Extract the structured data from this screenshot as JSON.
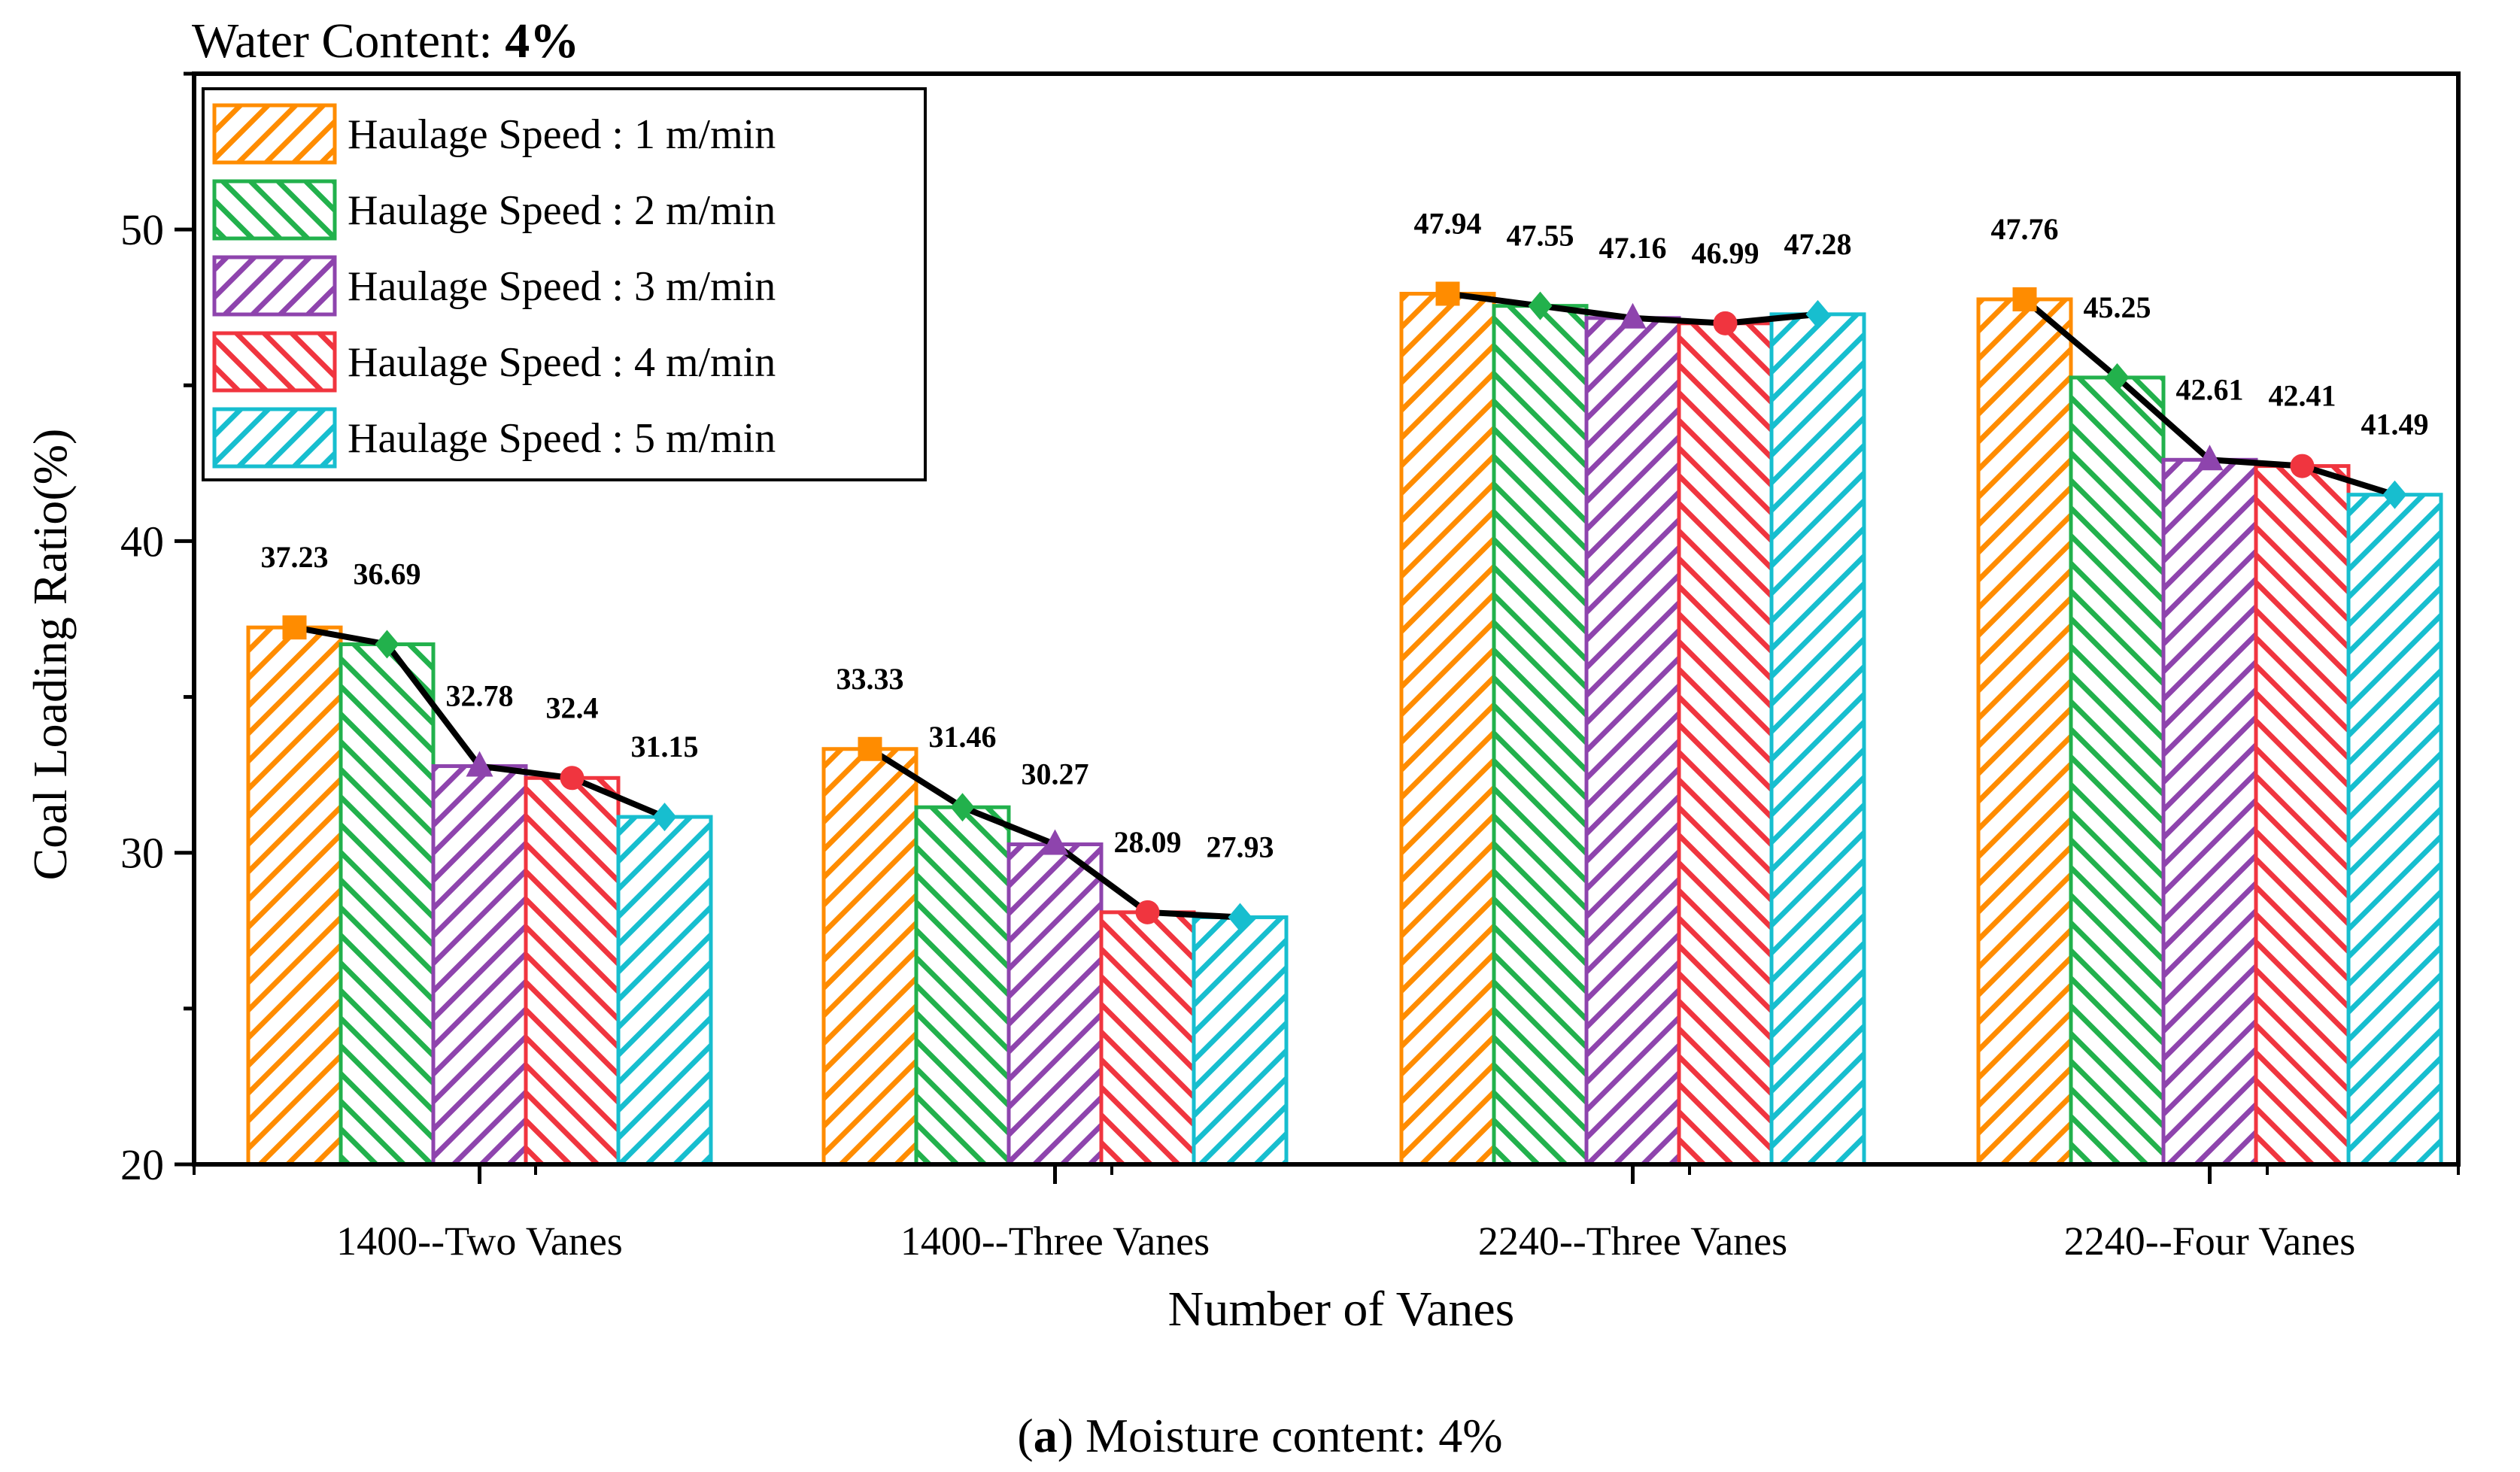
{
  "header": {
    "prefix": "Water Content: ",
    "value": "4%"
  },
  "caption": {
    "letter": "a",
    "text": " Moisture content: 4%"
  },
  "chart_data": {
    "type": "bar",
    "title": "Water Content: 4%",
    "xlabel": "Number of Vanes",
    "ylabel": "Coal Loading Ratio(%)",
    "ylim": [
      20,
      55
    ],
    "yticks": [
      20,
      30,
      40,
      50
    ],
    "categories": [
      "1400--Two Vanes",
      "1400--Three Vanes",
      "2240--Three Vanes",
      "2240--Four Vanes"
    ],
    "series": [
      {
        "name": "Haulage Speed : 1 m/min",
        "color": "#FF8C00",
        "marker": "square",
        "values": [
          37.23,
          33.33,
          47.94,
          47.76
        ]
      },
      {
        "name": "Haulage Speed : 2 m/min",
        "color": "#22B14C",
        "marker": "diamond",
        "values": [
          36.69,
          31.46,
          47.55,
          45.25
        ]
      },
      {
        "name": "Haulage Speed : 3 m/min",
        "color": "#8E44AD",
        "marker": "triangle",
        "values": [
          32.78,
          30.27,
          47.16,
          42.61
        ]
      },
      {
        "name": "Haulage Speed : 4 m/min",
        "color": "#F0353F",
        "marker": "circle",
        "values": [
          32.4,
          28.09,
          46.99,
          42.41
        ]
      },
      {
        "name": "Haulage Speed : 5 m/min",
        "color": "#17BECF",
        "marker": "diamond",
        "values": [
          31.15,
          27.93,
          47.28,
          41.49
        ]
      }
    ],
    "value_labels": [
      [
        "37.23",
        "36.69",
        "32.78",
        "32.4",
        "31.15"
      ],
      [
        "33.33",
        "31.46",
        "30.27",
        "28.09",
        "27.93"
      ],
      [
        "47.94",
        "47.55",
        "47.16",
        "46.99",
        "47.28"
      ],
      [
        "47.76",
        "45.25",
        "42.61",
        "42.41",
        "41.49"
      ]
    ],
    "trend_line_color": "#000000",
    "legend_position": "top-left",
    "grid": false
  }
}
